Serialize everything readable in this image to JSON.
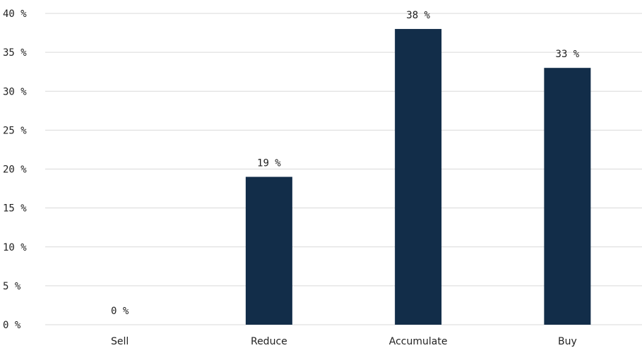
{
  "chart_data": {
    "type": "bar",
    "title": "",
    "xlabel": "",
    "ylabel": "",
    "categories": [
      "Sell",
      "Reduce",
      "Accumulate",
      "Buy"
    ],
    "values": [
      0,
      19,
      38,
      33
    ],
    "data_labels": [
      "0 %",
      "19 %",
      "38 %",
      "33 %"
    ],
    "ylim": [
      0,
      40
    ],
    "yticks": [
      0,
      5,
      10,
      15,
      20,
      25,
      30,
      35,
      40
    ],
    "ytick_labels": [
      "0 %",
      "5 %",
      "10 %",
      "15 %",
      "20 %",
      "25 %",
      "30 %",
      "35 %",
      "40 %"
    ],
    "grid": true,
    "legend": "none",
    "bar_color": "#122d49",
    "grid_color": "#d9d9d9"
  }
}
